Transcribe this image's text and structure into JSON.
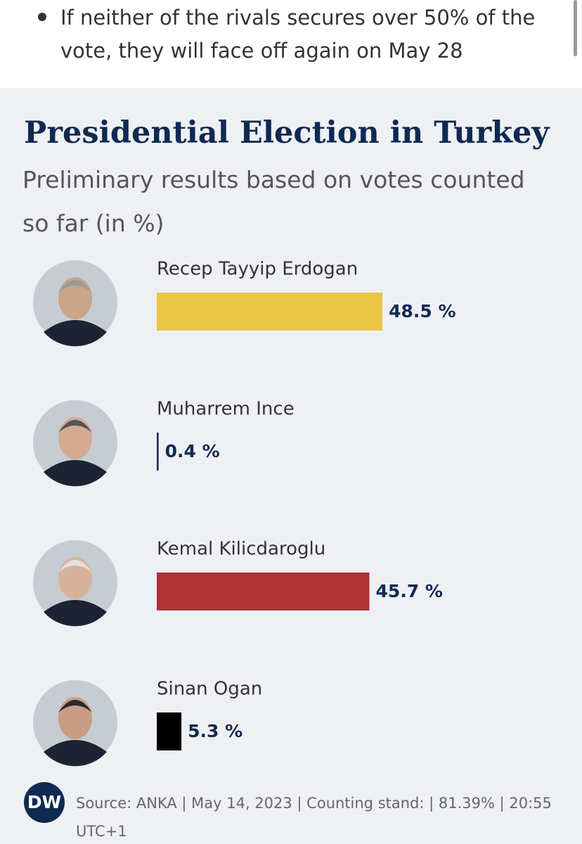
{
  "bullet": "If neither of the rivals secures over 50% of the vote, they will face off again on May 28",
  "chart_data": {
    "type": "bar",
    "orientation": "horizontal",
    "title": "Presidential Election in Turkey",
    "subtitle": "Preliminary results based on votes counted so far (in %)",
    "categories": [
      "Recep Tayyip Erdogan",
      "Muharrem Ince",
      "Kemal Kilicdaroglu",
      "Sinan Ogan"
    ],
    "values": [
      48.5,
      0.4,
      45.7,
      5.3
    ],
    "value_labels": [
      "48.5 %",
      "0.4 %",
      "45.7 %",
      "5.3 %"
    ],
    "colors": [
      "#e8c547",
      "#1c3057",
      "#b03235",
      "#000000"
    ]
  },
  "footer": {
    "logo": "DW",
    "source": "Source: ANKA | May 14, 2023 | Counting stand: | 81.39% | 20:55 UTC+1"
  }
}
